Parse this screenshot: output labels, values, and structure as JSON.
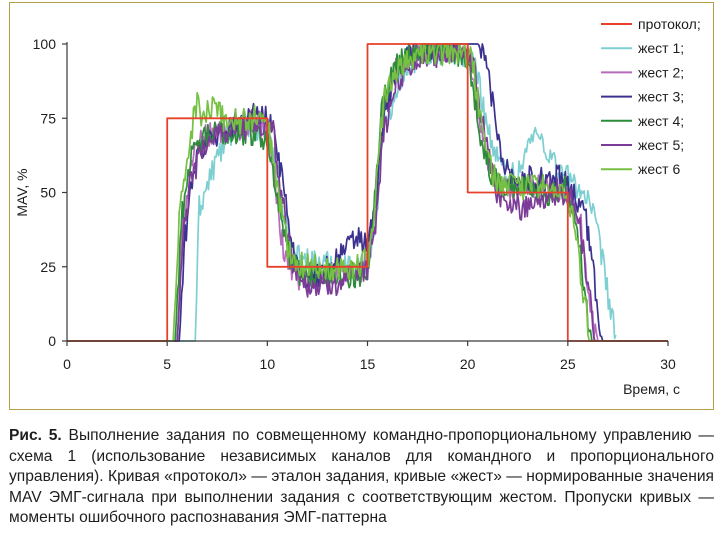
{
  "chart_data": {
    "type": "line",
    "xlabel": "Время, с",
    "ylabel": "MAV, %",
    "xlim": [
      0,
      30
    ],
    "ylim": [
      0,
      100
    ],
    "xticks": [
      0,
      5,
      10,
      15,
      20,
      25,
      30
    ],
    "yticks": [
      0,
      25,
      50,
      75,
      100
    ],
    "grid": false,
    "legend_position": "top-right",
    "series": [
      {
        "name": "протокол;",
        "color": "#e8412a",
        "style": "step",
        "points": [
          [
            0,
            0
          ],
          [
            5,
            0
          ],
          [
            5,
            75
          ],
          [
            10,
            75
          ],
          [
            10,
            25
          ],
          [
            15,
            25
          ],
          [
            15,
            100
          ],
          [
            20,
            100
          ],
          [
            20,
            50
          ],
          [
            25,
            50
          ],
          [
            25,
            0
          ],
          [
            30,
            0
          ]
        ]
      },
      {
        "name": "жест 1;",
        "color": "#7ecfd2",
        "points": [
          [
            0,
            0
          ],
          [
            6.4,
            0
          ],
          [
            6.6,
            45
          ],
          [
            7.0,
            52
          ],
          [
            7.5,
            62
          ],
          [
            8.0,
            68
          ],
          [
            8.5,
            72
          ],
          [
            9.0,
            72
          ],
          [
            9.5,
            70
          ],
          [
            10.0,
            72
          ],
          [
            10.4,
            60
          ],
          [
            10.8,
            42
          ],
          [
            11.2,
            30
          ],
          [
            12.0,
            27
          ],
          [
            13.0,
            26
          ],
          [
            14.0,
            25
          ],
          [
            15.0,
            25
          ],
          [
            15.4,
            40
          ],
          [
            15.8,
            70
          ],
          [
            16.4,
            85
          ],
          [
            17.0,
            93
          ],
          [
            18.0,
            97
          ],
          [
            19.0,
            97
          ],
          [
            20.0,
            97
          ],
          [
            20.5,
            90
          ],
          [
            20.9,
            75
          ],
          [
            21.4,
            62
          ],
          [
            22.0,
            56
          ],
          [
            22.5,
            56
          ],
          [
            23.0,
            66
          ],
          [
            23.5,
            70
          ],
          [
            24.0,
            64
          ],
          [
            24.5,
            58
          ],
          [
            25.0,
            55
          ],
          [
            25.5,
            52
          ],
          [
            26.0,
            48
          ],
          [
            26.5,
            36
          ],
          [
            26.9,
            20
          ],
          [
            27.2,
            8
          ],
          [
            27.4,
            2
          ]
        ]
      },
      {
        "name": "жест 2;",
        "color": "#b86bbd",
        "points": [
          [
            0,
            0
          ],
          [
            5.5,
            0
          ],
          [
            5.8,
            40
          ],
          [
            6.2,
            60
          ],
          [
            6.8,
            68
          ],
          [
            7.5,
            70
          ],
          [
            8.5,
            72
          ],
          [
            9.5,
            74
          ],
          [
            10.1,
            70
          ],
          [
            10.4,
            52
          ],
          [
            10.8,
            30
          ],
          [
            11.4,
            22
          ],
          [
            12.0,
            20
          ],
          [
            13.0,
            22
          ],
          [
            14.0,
            22
          ],
          [
            14.8,
            24
          ],
          [
            15.3,
            40
          ],
          [
            15.7,
            75
          ],
          [
            16.3,
            90
          ],
          [
            17.0,
            96
          ],
          [
            18.0,
            98
          ],
          [
            19.0,
            98
          ],
          [
            20.0,
            97
          ],
          [
            20.3,
            88
          ],
          [
            20.7,
            68
          ],
          [
            21.2,
            55
          ],
          [
            22.0,
            50
          ],
          [
            23.0,
            52
          ],
          [
            24.0,
            52
          ],
          [
            25.0,
            50
          ],
          [
            25.6,
            42
          ],
          [
            26.0,
            20
          ],
          [
            26.3,
            5
          ],
          [
            26.5,
            0
          ],
          [
            30,
            0
          ]
        ]
      },
      {
        "name": "жест 3;",
        "color": "#3b318f",
        "points": [
          [
            0,
            0
          ],
          [
            5.6,
            0
          ],
          [
            5.9,
            35
          ],
          [
            6.3,
            58
          ],
          [
            7.0,
            68
          ],
          [
            8.0,
            72
          ],
          [
            9.0,
            76
          ],
          [
            9.8,
            76
          ],
          [
            10.4,
            70
          ],
          [
            10.8,
            52
          ],
          [
            11.3,
            30
          ],
          [
            11.8,
            22
          ],
          [
            12.5,
            22
          ],
          [
            13.5,
            28
          ],
          [
            14.5,
            35
          ],
          [
            15.0,
            32
          ],
          [
            15.4,
            45
          ],
          [
            15.8,
            75
          ],
          [
            16.5,
            92
          ],
          [
            17.5,
            98
          ],
          [
            18.5,
            99
          ],
          [
            19.5,
            100
          ],
          [
            20.5,
            100
          ],
          [
            20.9,
            95
          ],
          [
            21.3,
            78
          ],
          [
            21.8,
            60
          ],
          [
            22.5,
            54
          ],
          [
            23.5,
            55
          ],
          [
            24.5,
            55
          ],
          [
            25.0,
            52
          ],
          [
            25.8,
            45
          ],
          [
            26.2,
            28
          ],
          [
            26.5,
            8
          ],
          [
            26.8,
            0
          ],
          [
            30,
            0
          ]
        ]
      },
      {
        "name": "жест 4;",
        "color": "#2d8c3a",
        "points": [
          [
            0,
            0
          ],
          [
            5.4,
            0
          ],
          [
            5.7,
            40
          ],
          [
            6.1,
            60
          ],
          [
            6.8,
            68
          ],
          [
            7.5,
            70
          ],
          [
            8.5,
            70
          ],
          [
            9.5,
            70
          ],
          [
            10.1,
            66
          ],
          [
            10.5,
            50
          ],
          [
            11.0,
            30
          ],
          [
            11.5,
            23
          ],
          [
            12.5,
            22
          ],
          [
            13.5,
            22
          ],
          [
            14.5,
            22
          ],
          [
            15.0,
            24
          ],
          [
            15.3,
            45
          ],
          [
            15.7,
            78
          ],
          [
            16.3,
            92
          ],
          [
            17.0,
            97
          ],
          [
            18.0,
            98
          ],
          [
            19.0,
            97
          ],
          [
            20.0,
            96
          ],
          [
            20.3,
            85
          ],
          [
            20.7,
            66
          ],
          [
            21.3,
            54
          ],
          [
            22.0,
            52
          ],
          [
            23.0,
            52
          ],
          [
            24.0,
            50
          ],
          [
            24.8,
            52
          ],
          [
            25.3,
            45
          ],
          [
            25.7,
            25
          ],
          [
            26.0,
            8
          ],
          [
            26.2,
            0
          ],
          [
            30,
            0
          ]
        ]
      },
      {
        "name": "жест 5;",
        "color": "#7b3c97",
        "points": [
          [
            0,
            0
          ],
          [
            5.5,
            0
          ],
          [
            5.8,
            35
          ],
          [
            6.2,
            55
          ],
          [
            6.8,
            65
          ],
          [
            7.5,
            70
          ],
          [
            8.5,
            72
          ],
          [
            9.5,
            73
          ],
          [
            10.3,
            70
          ],
          [
            10.7,
            50
          ],
          [
            11.2,
            28
          ],
          [
            11.7,
            20
          ],
          [
            12.5,
            18
          ],
          [
            13.5,
            20
          ],
          [
            14.5,
            22
          ],
          [
            15.0,
            24
          ],
          [
            15.4,
            40
          ],
          [
            15.8,
            70
          ],
          [
            16.5,
            88
          ],
          [
            17.5,
            95
          ],
          [
            18.5,
            96
          ],
          [
            19.5,
            97
          ],
          [
            20.2,
            95
          ],
          [
            20.5,
            85
          ],
          [
            20.9,
            66
          ],
          [
            21.4,
            50
          ],
          [
            22.0,
            46
          ],
          [
            22.8,
            45
          ],
          [
            23.5,
            48
          ],
          [
            24.3,
            50
          ],
          [
            25.0,
            50
          ],
          [
            25.6,
            40
          ],
          [
            26.0,
            18
          ],
          [
            26.3,
            5
          ],
          [
            26.5,
            0
          ],
          [
            30,
            0
          ]
        ]
      },
      {
        "name": "жест 6",
        "color": "#76c043",
        "points": [
          [
            0,
            0
          ],
          [
            5.3,
            0
          ],
          [
            5.6,
            40
          ],
          [
            6.0,
            62
          ],
          [
            6.5,
            82
          ],
          [
            6.7,
            75
          ],
          [
            7.2,
            78
          ],
          [
            8.0,
            74
          ],
          [
            9.0,
            74
          ],
          [
            9.6,
            76
          ],
          [
            10.1,
            70
          ],
          [
            10.5,
            52
          ],
          [
            11.0,
            32
          ],
          [
            11.6,
            26
          ],
          [
            12.5,
            25
          ],
          [
            13.5,
            25
          ],
          [
            14.5,
            25
          ],
          [
            15.1,
            28
          ],
          [
            15.4,
            50
          ],
          [
            15.8,
            80
          ],
          [
            16.5,
            93
          ],
          [
            17.5,
            96
          ],
          [
            18.5,
            97
          ],
          [
            19.5,
            98
          ],
          [
            20.2,
            95
          ],
          [
            20.5,
            82
          ],
          [
            20.9,
            64
          ],
          [
            21.4,
            54
          ],
          [
            22.0,
            52
          ],
          [
            23.0,
            52
          ],
          [
            24.0,
            52
          ],
          [
            24.8,
            50
          ],
          [
            25.3,
            40
          ],
          [
            25.7,
            20
          ],
          [
            26.0,
            5
          ],
          [
            26.2,
            0
          ],
          [
            30,
            0
          ]
        ]
      }
    ]
  },
  "caption": {
    "lead": "Рис. 5.",
    "text": " Выполнение задания по совмещенному командно-пропорциональному управлению — схема 1 (использование независимых каналов для командного и пропорционального управления). Кривая «протокол» — эталон задания, кривые «жест» — нормированные значения MAV ЭМГ-сигнала при выполнении задания с соответствующим жестом. Пропуски кривых — моменты ошибочного распознавания ЭМГ-паттерна"
  }
}
